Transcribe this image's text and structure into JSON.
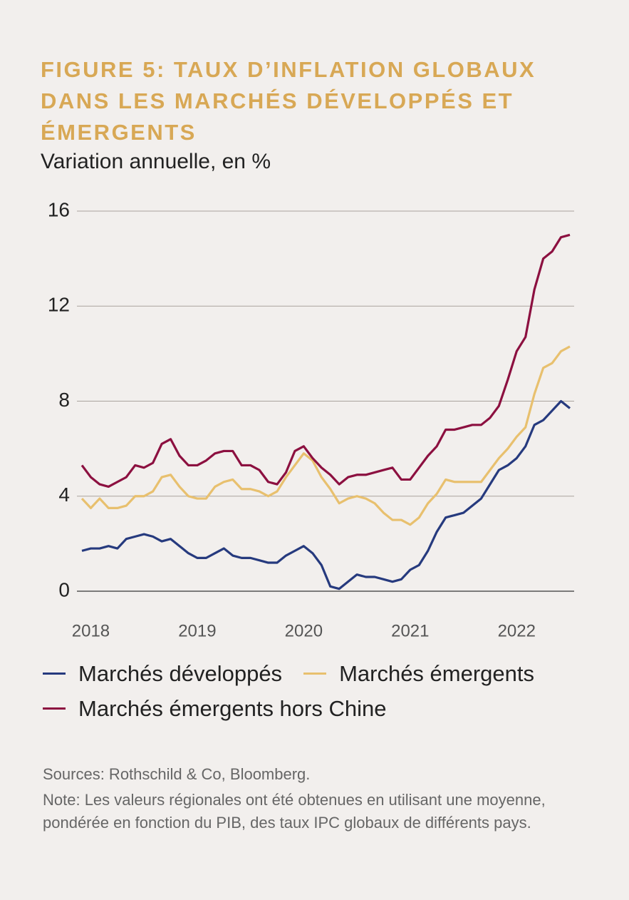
{
  "chart_data": {
    "type": "line",
    "title": "FIGURE 5: TAUX D’INFLATION GLOBAUX DANS LES MARCHÉS DÉVELOPPÉS ET ÉMERGENTS",
    "subtitle": "Variation annuelle, en %",
    "ylim": [
      0,
      16
    ],
    "yticks": [
      0,
      4,
      8,
      12,
      16
    ],
    "grid": true,
    "xlim": [
      0,
      55
    ],
    "xticks": [
      {
        "value": 1,
        "label": "2018"
      },
      {
        "value": 13,
        "label": "2019"
      },
      {
        "value": 25,
        "label": "2020"
      },
      {
        "value": 37,
        "label": "2021"
      },
      {
        "value": 49,
        "label": "2022"
      }
    ],
    "series": [
      {
        "name": "Marchés développés",
        "color": "#263a7e",
        "values": [
          1.7,
          1.8,
          1.8,
          1.9,
          1.8,
          2.2,
          2.3,
          2.4,
          2.3,
          2.1,
          2.2,
          1.9,
          1.6,
          1.4,
          1.4,
          1.6,
          1.8,
          1.5,
          1.4,
          1.4,
          1.3,
          1.2,
          1.2,
          1.5,
          1.7,
          1.9,
          1.6,
          1.1,
          0.2,
          0.1,
          0.4,
          0.7,
          0.6,
          0.6,
          0.5,
          0.4,
          0.5,
          0.9,
          1.1,
          1.7,
          2.5,
          3.1,
          3.2,
          3.3,
          3.6,
          3.9,
          4.5,
          5.1,
          5.3,
          5.6,
          6.1,
          7.0,
          7.2,
          7.6,
          8.0,
          7.7
        ]
      },
      {
        "name": "Marchés émergents",
        "color": "#e8c06e",
        "values": [
          3.9,
          3.5,
          3.9,
          3.5,
          3.5,
          3.6,
          4.0,
          4.0,
          4.2,
          4.8,
          4.9,
          4.4,
          4.0,
          3.9,
          3.9,
          4.4,
          4.6,
          4.7,
          4.3,
          4.3,
          4.2,
          4.0,
          4.2,
          4.8,
          5.3,
          5.8,
          5.5,
          4.8,
          4.3,
          3.7,
          3.9,
          4.0,
          3.9,
          3.7,
          3.3,
          3.0,
          3.0,
          2.8,
          3.1,
          3.7,
          4.1,
          4.7,
          4.6,
          4.6,
          4.6,
          4.6,
          5.1,
          5.6,
          6.0,
          6.5,
          6.9,
          8.3,
          9.4,
          9.6,
          10.1,
          10.3
        ]
      },
      {
        "name": "Marchés émergents hors Chine",
        "color": "#8c1040",
        "values": [
          5.3,
          4.8,
          4.5,
          4.4,
          4.6,
          4.8,
          5.3,
          5.2,
          5.4,
          6.2,
          6.4,
          5.7,
          5.3,
          5.3,
          5.5,
          5.8,
          5.9,
          5.9,
          5.3,
          5.3,
          5.1,
          4.6,
          4.5,
          5.0,
          5.9,
          6.1,
          5.6,
          5.2,
          4.9,
          4.5,
          4.8,
          4.9,
          4.9,
          5.0,
          5.1,
          5.2,
          4.7,
          4.7,
          5.2,
          5.7,
          6.1,
          6.8,
          6.8,
          6.9,
          7.0,
          7.0,
          7.3,
          7.8,
          8.9,
          10.1,
          10.7,
          12.7,
          14.0,
          14.3,
          14.9,
          15.0
        ]
      }
    ],
    "sources": "Sources: Rothschild & Co, Bloomberg.",
    "note": "Note: Les valeurs régionales ont été obtenues en utilisant une moyenne, pondérée en fonction du PIB, des taux IPC globaux de différents pays."
  }
}
